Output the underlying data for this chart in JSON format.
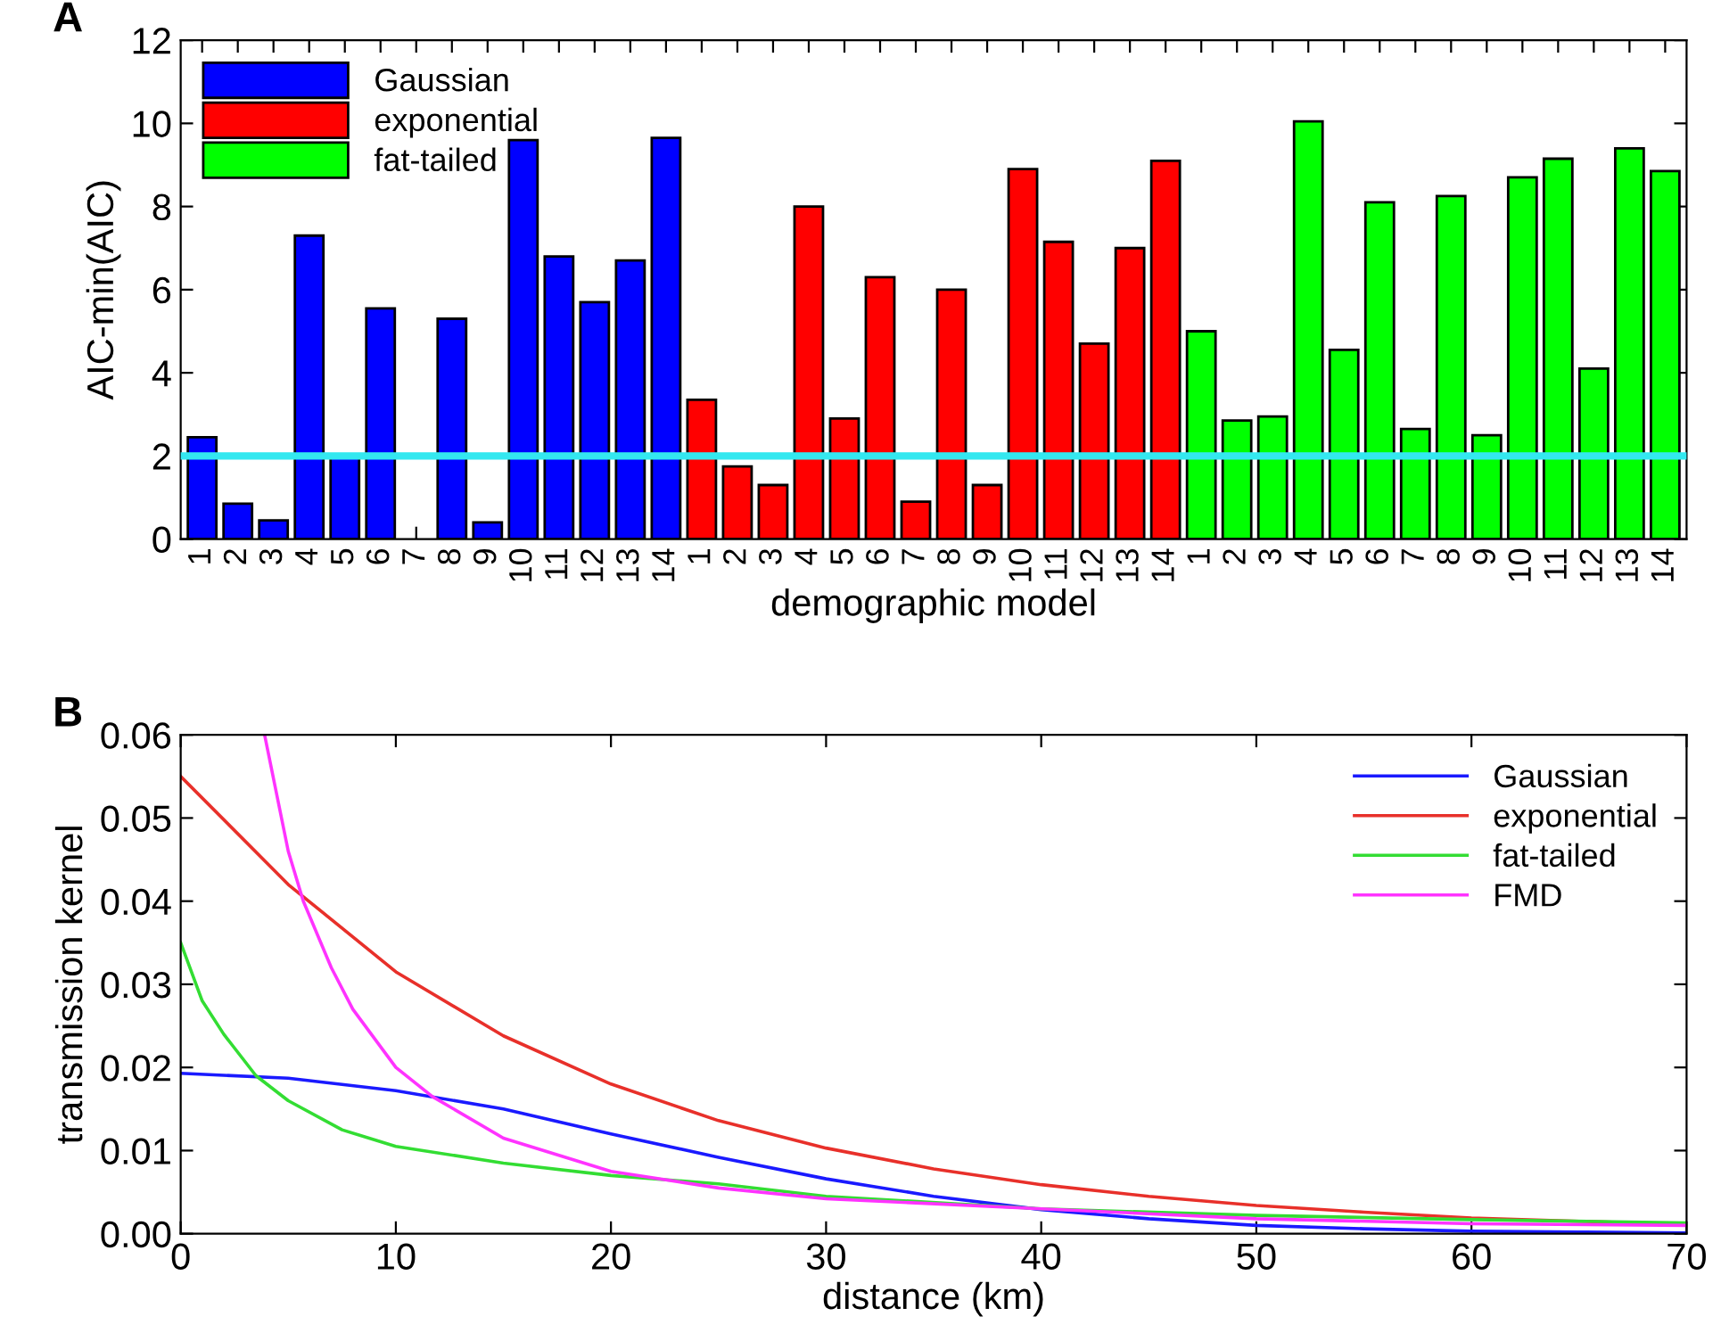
{
  "chart_data": [
    {
      "type": "bar",
      "title": "A",
      "xlabel": "demographic model",
      "ylabel": "AIC-min(AIC)",
      "categories": [
        "1",
        "2",
        "3",
        "4",
        "5",
        "6",
        "7",
        "8",
        "9",
        "10",
        "11",
        "12",
        "13",
        "14",
        "1",
        "2",
        "3",
        "4",
        "5",
        "6",
        "7",
        "8",
        "9",
        "10",
        "11",
        "12",
        "13",
        "14",
        "1",
        "2",
        "3",
        "4",
        "5",
        "6",
        "7",
        "8",
        "9",
        "10",
        "11",
        "12",
        "13",
        "14"
      ],
      "series": [
        {
          "name": "Gaussian",
          "color": "#0000ff",
          "values": [
            2.45,
            0.85,
            0.45,
            7.3,
            1.95,
            5.55,
            null,
            5.3,
            0.4,
            9.6,
            6.8,
            5.7,
            6.7,
            9.65,
            null,
            null,
            null,
            null,
            null,
            null,
            null,
            null,
            null,
            null,
            null,
            null,
            null,
            null,
            null,
            null,
            null,
            null,
            null,
            null,
            null,
            null,
            null,
            null,
            null,
            null,
            null,
            null
          ]
        },
        {
          "name": "exponential",
          "color": "#ff0000",
          "values": [
            null,
            null,
            null,
            null,
            null,
            null,
            null,
            null,
            null,
            null,
            null,
            null,
            null,
            null,
            3.35,
            1.75,
            1.3,
            8.0,
            2.9,
            6.3,
            0.9,
            6.0,
            1.3,
            8.9,
            7.15,
            4.7,
            7.0,
            9.1,
            null,
            null,
            null,
            null,
            null,
            null,
            null,
            null,
            null,
            null,
            null,
            null,
            null,
            null
          ]
        },
        {
          "name": "fat-tailed",
          "color": "#00ff00",
          "values": [
            null,
            null,
            null,
            null,
            null,
            null,
            null,
            null,
            null,
            null,
            null,
            null,
            null,
            null,
            null,
            null,
            null,
            null,
            null,
            null,
            null,
            null,
            null,
            null,
            null,
            null,
            null,
            null,
            5.0,
            2.85,
            2.95,
            10.05,
            4.55,
            8.1,
            2.65,
            8.25,
            2.5,
            8.7,
            9.15,
            4.1,
            9.4,
            8.85
          ]
        }
      ],
      "ylim": [
        0,
        12
      ],
      "yticks": [
        0,
        2,
        4,
        6,
        8,
        10,
        12
      ],
      "ref_lines": [
        {
          "axis": "y",
          "value": 2,
          "color": "#33e8f0"
        }
      ],
      "legend": "top left",
      "grid": false
    },
    {
      "type": "line",
      "title": "B",
      "xlabel": "distance (km)",
      "ylabel": "transmission kernel",
      "series": [
        {
          "name": "Gaussian",
          "color": "#1a1aff",
          "x": [
            0,
            5,
            10,
            15,
            20,
            25,
            30,
            35,
            40,
            45,
            50,
            55,
            60,
            65,
            70
          ],
          "values": [
            0.0193,
            0.0187,
            0.0172,
            0.015,
            0.012,
            0.0092,
            0.0066,
            0.0045,
            0.0029,
            0.0018,
            0.001,
            0.0006,
            0.0003,
            0.0002,
            0.0001
          ]
        },
        {
          "name": "exponential",
          "color": "#e8302a",
          "x": [
            0,
            5,
            10,
            15,
            20,
            25,
            30,
            35,
            40,
            45,
            50,
            55,
            60,
            65,
            70
          ],
          "values": [
            0.055,
            0.042,
            0.0315,
            0.0238,
            0.018,
            0.0136,
            0.0103,
            0.0078,
            0.0059,
            0.0045,
            0.0034,
            0.0026,
            0.0019,
            0.0015,
            0.0011
          ]
        },
        {
          "name": "fat-tailed",
          "color": "#33dd33",
          "x": [
            0,
            1,
            2,
            3.5,
            5,
            7.5,
            10,
            15,
            20,
            25,
            30,
            40,
            50,
            60,
            70
          ],
          "values": [
            0.035,
            0.028,
            0.024,
            0.019,
            0.016,
            0.0125,
            0.0105,
            0.0085,
            0.007,
            0.006,
            0.0045,
            0.003,
            0.0022,
            0.0017,
            0.0013
          ]
        },
        {
          "name": "FMD",
          "color": "#ff33ff",
          "x": [
            3.9,
            5,
            5.7,
            7,
            8,
            10,
            11.7,
            15,
            20,
            25,
            30,
            40,
            50,
            60,
            70
          ],
          "values": [
            0.06,
            0.046,
            0.04,
            0.032,
            0.027,
            0.02,
            0.0165,
            0.0115,
            0.0075,
            0.0055,
            0.0042,
            0.003,
            0.0018,
            0.0012,
            0.001
          ]
        }
      ],
      "xlim": [
        0,
        70
      ],
      "xticks": [
        0,
        10,
        20,
        30,
        40,
        50,
        60,
        70
      ],
      "ylim": [
        0,
        0.06
      ],
      "yticks": [
        {
          "value": 0,
          "label": "0.00"
        },
        {
          "value": 0.01,
          "label": "0.01"
        },
        {
          "value": 0.02,
          "label": "0.02"
        },
        {
          "value": 0.03,
          "label": "0.03"
        },
        {
          "value": 0.04,
          "label": "0.04"
        },
        {
          "value": 0.05,
          "label": "0.05"
        },
        {
          "value": 0.06,
          "label": "0.06"
        }
      ],
      "legend": "top right",
      "grid": false,
      "marker": "none",
      "line_style": "solid"
    }
  ]
}
